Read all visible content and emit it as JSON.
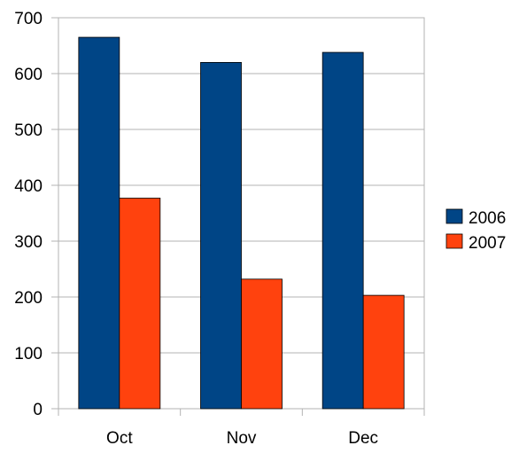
{
  "chart_data": {
    "type": "bar",
    "title": "",
    "xlabel": "",
    "ylabel": "",
    "categories": [
      "Oct",
      "Nov",
      "Dec"
    ],
    "series": [
      {
        "name": "2006",
        "color": "#004586",
        "values": [
          665,
          620,
          638
        ]
      },
      {
        "name": "2007",
        "color": "#ff420e",
        "values": [
          377,
          232,
          203
        ]
      }
    ],
    "ylim": [
      0,
      700
    ],
    "yticks": [
      0,
      100,
      200,
      300,
      400,
      500,
      600,
      700
    ],
    "grid": true,
    "legend": "right"
  }
}
